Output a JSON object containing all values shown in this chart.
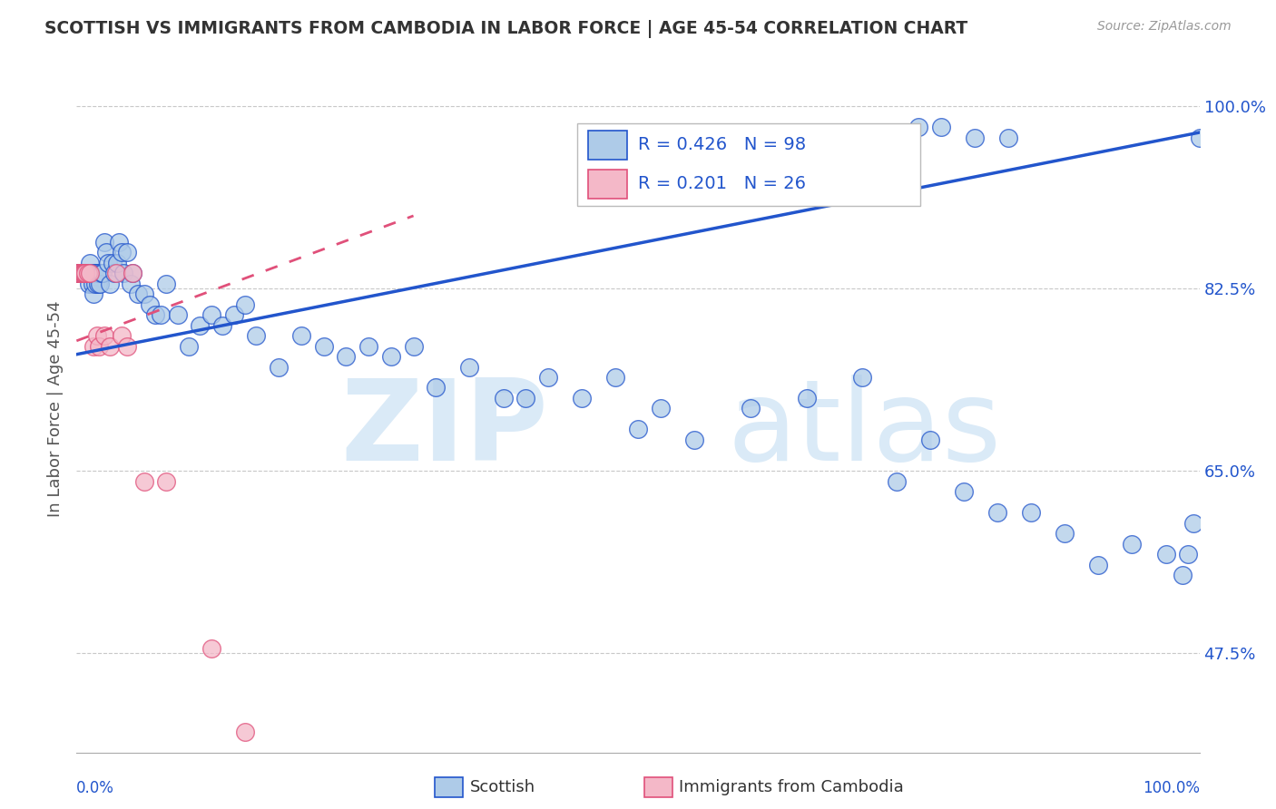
{
  "title": "SCOTTISH VS IMMIGRANTS FROM CAMBODIA IN LABOR FORCE | AGE 45-54 CORRELATION CHART",
  "source": "Source: ZipAtlas.com",
  "ylabel": "In Labor Force | Age 45-54",
  "ytick_labels": [
    "100.0%",
    "82.5%",
    "65.0%",
    "47.5%"
  ],
  "ytick_values": [
    1.0,
    0.825,
    0.65,
    0.475
  ],
  "xlim": [
    0.0,
    1.0
  ],
  "ylim": [
    0.38,
    1.04
  ],
  "r_scottish": 0.426,
  "n_scottish": 98,
  "r_cambodia": 0.201,
  "n_cambodia": 26,
  "scatter_scottish_color": "#aecbe8",
  "scatter_cambodia_color": "#f4b8c8",
  "line_scottish_color": "#2255cc",
  "line_cambodia_color": "#e0507a",
  "watermark_color": "#daeaf7",
  "background_color": "#ffffff",
  "grid_color": "#c8c8c8",
  "legend_text_color": "#2255cc",
  "title_color": "#333333",
  "scottish_x": [
    0.001,
    0.002,
    0.003,
    0.003,
    0.004,
    0.005,
    0.005,
    0.006,
    0.006,
    0.007,
    0.007,
    0.008,
    0.008,
    0.009,
    0.009,
    0.01,
    0.01,
    0.011,
    0.011,
    0.012,
    0.012,
    0.013,
    0.014,
    0.015,
    0.015,
    0.016,
    0.016,
    0.017,
    0.018,
    0.019,
    0.02,
    0.021,
    0.022,
    0.023,
    0.025,
    0.026,
    0.028,
    0.03,
    0.032,
    0.034,
    0.036,
    0.038,
    0.04,
    0.042,
    0.045,
    0.048,
    0.05,
    0.055,
    0.06,
    0.065,
    0.07,
    0.075,
    0.08,
    0.09,
    0.1,
    0.11,
    0.12,
    0.13,
    0.14,
    0.15,
    0.16,
    0.18,
    0.2,
    0.22,
    0.24,
    0.26,
    0.28,
    0.3,
    0.32,
    0.35,
    0.38,
    0.4,
    0.42,
    0.45,
    0.48,
    0.5,
    0.52,
    0.55,
    0.6,
    0.65,
    0.7,
    0.73,
    0.76,
    0.79,
    0.82,
    0.85,
    0.88,
    0.91,
    0.94,
    0.97,
    0.985,
    0.99,
    0.995,
    1.0,
    0.75,
    0.77,
    0.8,
    0.83
  ],
  "scottish_y": [
    0.84,
    0.84,
    0.84,
    0.84,
    0.84,
    0.84,
    0.84,
    0.84,
    0.84,
    0.84,
    0.84,
    0.84,
    0.84,
    0.84,
    0.84,
    0.84,
    0.84,
    0.84,
    0.83,
    0.84,
    0.85,
    0.84,
    0.83,
    0.84,
    0.82,
    0.84,
    0.84,
    0.83,
    0.84,
    0.83,
    0.84,
    0.83,
    0.84,
    0.84,
    0.87,
    0.86,
    0.85,
    0.83,
    0.85,
    0.84,
    0.85,
    0.87,
    0.86,
    0.84,
    0.86,
    0.83,
    0.84,
    0.82,
    0.82,
    0.81,
    0.8,
    0.8,
    0.83,
    0.8,
    0.77,
    0.79,
    0.8,
    0.79,
    0.8,
    0.81,
    0.78,
    0.75,
    0.78,
    0.77,
    0.76,
    0.77,
    0.76,
    0.77,
    0.73,
    0.75,
    0.72,
    0.72,
    0.74,
    0.72,
    0.74,
    0.69,
    0.71,
    0.68,
    0.71,
    0.72,
    0.74,
    0.64,
    0.68,
    0.63,
    0.61,
    0.61,
    0.59,
    0.56,
    0.58,
    0.57,
    0.55,
    0.57,
    0.6,
    0.97,
    0.98,
    0.98,
    0.97,
    0.97
  ],
  "cambodia_x": [
    0.001,
    0.002,
    0.002,
    0.003,
    0.003,
    0.004,
    0.005,
    0.005,
    0.006,
    0.007,
    0.008,
    0.01,
    0.012,
    0.015,
    0.018,
    0.02,
    0.025,
    0.03,
    0.035,
    0.04,
    0.045,
    0.05,
    0.06,
    0.08,
    0.12,
    0.15
  ],
  "cambodia_y": [
    0.84,
    0.84,
    0.84,
    0.84,
    0.84,
    0.84,
    0.84,
    0.84,
    0.84,
    0.84,
    0.84,
    0.84,
    0.84,
    0.77,
    0.78,
    0.77,
    0.78,
    0.77,
    0.84,
    0.78,
    0.77,
    0.84,
    0.64,
    0.64,
    0.48,
    0.4
  ],
  "scottish_line_x": [
    0.0,
    1.0
  ],
  "scottish_line_y": [
    0.762,
    0.975
  ],
  "cambodia_line_x": [
    0.0,
    0.3
  ],
  "cambodia_line_y": [
    0.775,
    0.895
  ]
}
